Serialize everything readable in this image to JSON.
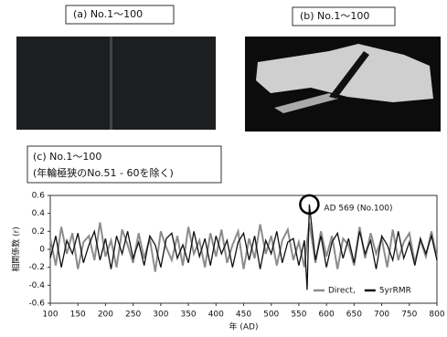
{
  "panel_a": {
    "label": "(a) No.1〜100"
  },
  "panel_b": {
    "label": "(b) No.1〜100"
  },
  "chart_data": {
    "type": "line",
    "title": "(c) No.1〜100",
    "subtitle": "(年輪極狭のNo.51 - 60を除く)",
    "x_label": "年 (AD)",
    "y_label": "相関係数 (r)",
    "annotation": "AD 569 (No.100)",
    "x": [
      100,
      110,
      120,
      130,
      140,
      150,
      160,
      170,
      180,
      190,
      200,
      210,
      220,
      230,
      240,
      250,
      260,
      270,
      280,
      290,
      300,
      310,
      320,
      330,
      340,
      350,
      360,
      370,
      380,
      390,
      400,
      410,
      420,
      430,
      440,
      450,
      460,
      470,
      480,
      490,
      500,
      510,
      520,
      530,
      540,
      550,
      560,
      565,
      569,
      580,
      590,
      600,
      610,
      620,
      630,
      640,
      650,
      660,
      670,
      680,
      690,
      700,
      710,
      720,
      730,
      740,
      750,
      760,
      770,
      780,
      790,
      800
    ],
    "series": [
      {
        "name": "Direct,",
        "color": "#8c8c8c",
        "values": [
          0.12,
          -0.18,
          0.25,
          -0.05,
          0.18,
          -0.22,
          0.08,
          0.15,
          -0.12,
          0.3,
          -0.08,
          0.1,
          -0.2,
          0.22,
          0.05,
          -0.15,
          0.18,
          -0.1,
          0.12,
          -0.25,
          0.2,
          0.02,
          -0.12,
          0.15,
          -0.18,
          0.25,
          -0.05,
          0.1,
          -0.2,
          0.18,
          -0.08,
          0.22,
          -0.15,
          0.05,
          0.2,
          -0.22,
          0.12,
          -0.1,
          0.28,
          -0.05,
          0.15,
          -0.18,
          0.1,
          0.22,
          -0.12,
          0.08,
          -0.2,
          0.1,
          0.3,
          -0.15,
          0.2,
          -0.08,
          0.15,
          -0.22,
          0.12,
          0.05,
          -0.18,
          0.25,
          -0.1,
          0.18,
          -0.05,
          0.12,
          -0.2,
          0.22,
          -0.12,
          0.08,
          0.18,
          -0.15,
          0.1,
          -0.08,
          0.2,
          -0.1
        ]
      },
      {
        "name": "5yrRMR",
        "color": "#111111",
        "values": [
          -0.1,
          0.15,
          -0.2,
          0.1,
          -0.05,
          0.18,
          -0.15,
          0.05,
          0.2,
          -0.12,
          0.12,
          -0.22,
          0.15,
          -0.05,
          0.2,
          -0.1,
          0.08,
          -0.18,
          0.15,
          0.05,
          -0.2,
          0.12,
          0.18,
          -0.1,
          0.05,
          -0.15,
          0.2,
          -0.08,
          0.12,
          -0.18,
          0.15,
          -0.05,
          0.1,
          -0.2,
          0.08,
          0.18,
          -0.12,
          0.15,
          -0.22,
          0.1,
          -0.05,
          0.2,
          -0.15,
          0.08,
          0.12,
          -0.18,
          0.1,
          -0.45,
          0.5,
          -0.12,
          0.15,
          -0.2,
          0.08,
          0.18,
          -0.1,
          0.12,
          -0.15,
          0.2,
          -0.05,
          0.1,
          -0.22,
          0.15,
          0.05,
          -0.12,
          0.2,
          -0.1,
          0.08,
          -0.18,
          0.12,
          -0.05,
          0.15,
          -0.12
        ]
      }
    ],
    "xlim": [
      100,
      800
    ],
    "ylim": [
      -0.6,
      0.6
    ],
    "xticks": [
      100,
      150,
      200,
      250,
      300,
      350,
      400,
      450,
      500,
      550,
      600,
      650,
      700,
      750,
      800
    ],
    "yticks": [
      0.6,
      0.4,
      0.2,
      0,
      -0.2,
      -0.4,
      -0.6
    ],
    "legend": "lower right"
  }
}
